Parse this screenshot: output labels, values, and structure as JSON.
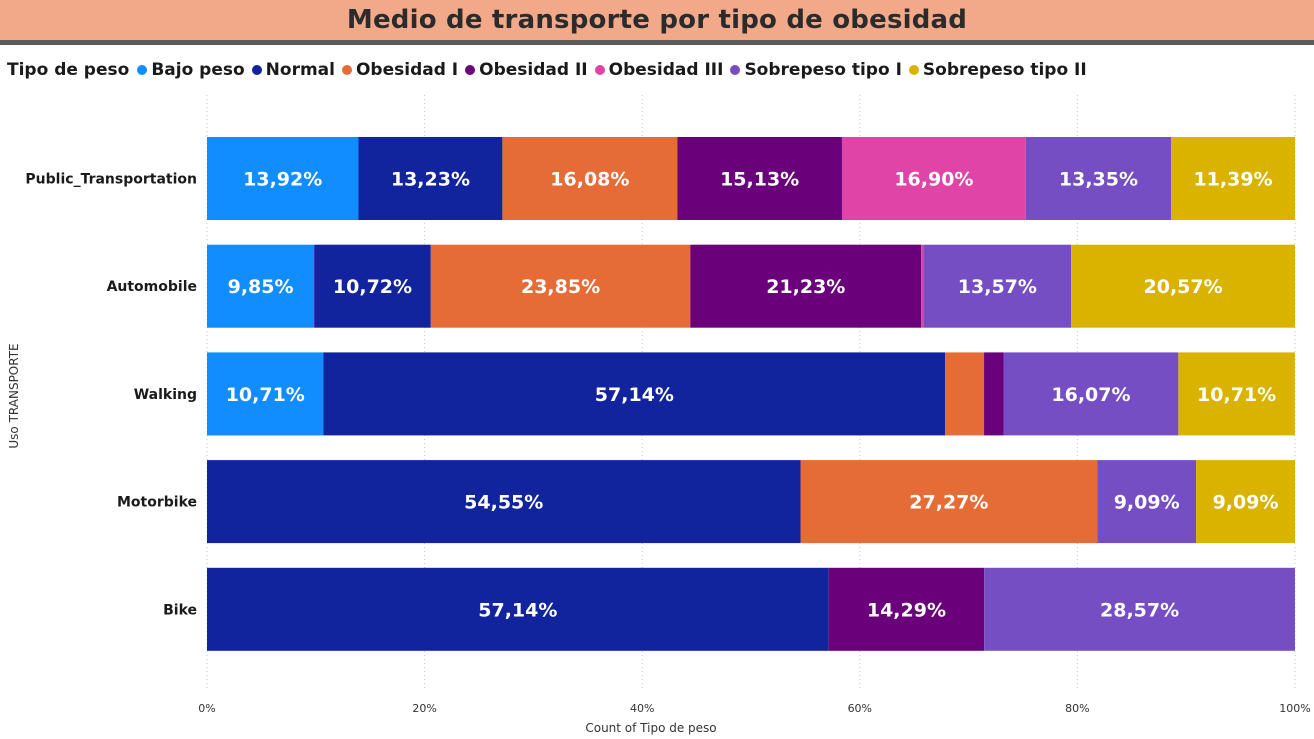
{
  "title": "Medio de transporte por tipo de obesidad",
  "legend": {
    "title": "Tipo de peso",
    "items": [
      {
        "name": "Bajo peso",
        "color": "#118dff"
      },
      {
        "name": "Normal",
        "color": "#12239e"
      },
      {
        "name": "Obesidad I",
        "color": "#e66c37"
      },
      {
        "name": "Obesidad II",
        "color": "#6b007b"
      },
      {
        "name": "Obesidad III",
        "color": "#e044a7"
      },
      {
        "name": "Sobrepeso tipo I",
        "color": "#744ec2"
      },
      {
        "name": "Sobrepeso tipo II",
        "color": "#d9b300"
      }
    ]
  },
  "chart_data": {
    "type": "bar",
    "orientation": "horizontal",
    "stacked": "100%",
    "title": "Medio de transporte por tipo de obesidad",
    "xlabel": "Count of Tipo de peso",
    "ylabel": "Uso TRANSPORTE",
    "xlim": [
      0,
      100
    ],
    "x_ticks": [
      "0%",
      "20%",
      "40%",
      "60%",
      "80%",
      "100%"
    ],
    "grid": "vertical dotted",
    "legend_position": "top-left",
    "categories": [
      "Public_Transportation",
      "Automobile",
      "Walking",
      "Motorbike",
      "Bike"
    ],
    "series": [
      {
        "name": "Bajo peso",
        "color": "#118dff",
        "values": [
          13.92,
          9.85,
          10.71,
          0,
          0
        ],
        "labels": [
          "13,92%",
          "9,85%",
          "10,71%",
          "",
          ""
        ]
      },
      {
        "name": "Normal",
        "color": "#12239e",
        "values": [
          13.23,
          10.72,
          57.14,
          54.55,
          57.14
        ],
        "labels": [
          "13,23%",
          "10,72%",
          "57,14%",
          "54,55%",
          "57,14%"
        ]
      },
      {
        "name": "Obesidad I",
        "color": "#e66c37",
        "values": [
          16.08,
          23.85,
          3.57,
          27.27,
          0
        ],
        "labels": [
          "16,08%",
          "23,85%",
          "",
          "27,27%",
          ""
        ]
      },
      {
        "name": "Obesidad II",
        "color": "#6b007b",
        "values": [
          15.13,
          21.23,
          1.79,
          0,
          14.29
        ],
        "labels": [
          "15,13%",
          "21,23%",
          "",
          "",
          "14,29%"
        ]
      },
      {
        "name": "Obesidad III",
        "color": "#e044a7",
        "values": [
          16.9,
          0.21,
          0,
          0,
          0
        ],
        "labels": [
          "16,90%",
          "",
          "",
          "",
          ""
        ]
      },
      {
        "name": "Sobrepeso tipo I",
        "color": "#744ec2",
        "values": [
          13.35,
          13.57,
          16.07,
          9.09,
          28.57
        ],
        "labels": [
          "13,35%",
          "13,57%",
          "16,07%",
          "9,09%",
          "28,57%"
        ]
      },
      {
        "name": "Sobrepeso tipo II",
        "color": "#d9b300",
        "values": [
          11.39,
          20.57,
          10.71,
          9.09,
          0
        ],
        "labels": [
          "11,39%",
          "20,57%",
          "10,71%",
          "9,09%",
          ""
        ]
      }
    ]
  }
}
